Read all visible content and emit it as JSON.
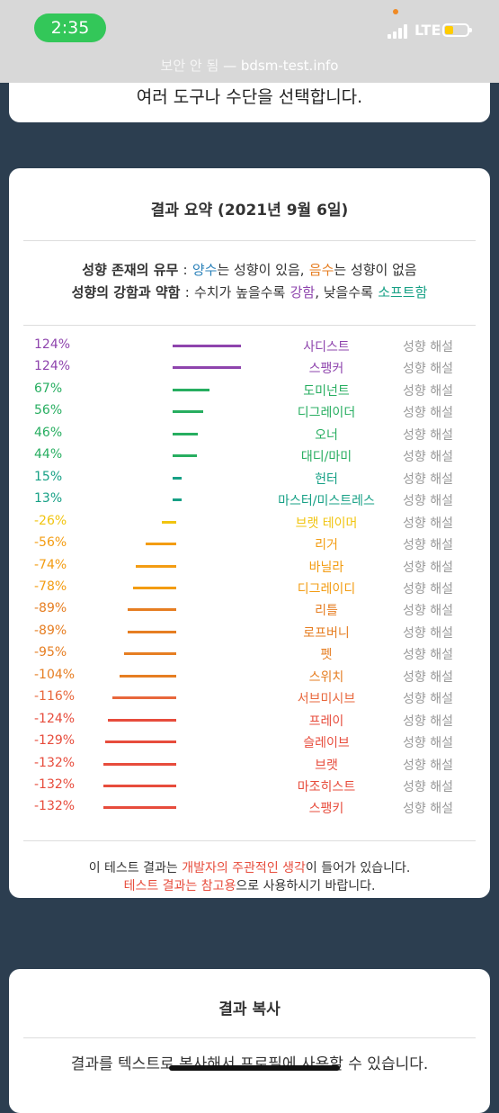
{
  "status": {
    "time": "2:35",
    "network": "LTE"
  },
  "browser": {
    "insecure": "보안 안 됨",
    "separator": "—",
    "domain": "bdsm-test.info"
  },
  "top_card": {
    "text": "여러 도구나 수단을 선택합니다."
  },
  "summary": {
    "title": "결과 요약 (2021년 9월 6일)",
    "legend1": {
      "label": "성향 존재의 유무",
      "colon": ":",
      "pos": "양수",
      "pos_rest": "는 성향이 있음,",
      "neg": "음수",
      "neg_rest": "는 성향이 없음"
    },
    "legend2": {
      "label": "성향의 강함과 약함",
      "colon": ":",
      "start": "수치가 높을수록",
      "strong": "강함",
      "mid": ", 낮을수록",
      "soft": "소프트함"
    },
    "explain_label": "성향 해설",
    "rows": [
      {
        "pct": "124%",
        "name": "사디스트",
        "value": 124,
        "color": "#8e44ad"
      },
      {
        "pct": "124%",
        "name": "스팽커",
        "value": 124,
        "color": "#8e44ad"
      },
      {
        "pct": "67%",
        "name": "도미넌트",
        "value": 67,
        "color": "#27ae60"
      },
      {
        "pct": "56%",
        "name": "디그레이더",
        "value": 56,
        "color": "#27ae60"
      },
      {
        "pct": "46%",
        "name": "오너",
        "value": 46,
        "color": "#27ae60"
      },
      {
        "pct": "44%",
        "name": "대디/마미",
        "value": 44,
        "color": "#27ae60"
      },
      {
        "pct": "15%",
        "name": "헌터",
        "value": 15,
        "color": "#16a085"
      },
      {
        "pct": "13%",
        "name": "마스터/미스트레스",
        "value": 13,
        "color": "#16a085"
      },
      {
        "pct": "-26%",
        "name": "브랫 테이머",
        "value": -26,
        "color": "#f1c40f"
      },
      {
        "pct": "-56%",
        "name": "리거",
        "value": -56,
        "color": "#f39c12"
      },
      {
        "pct": "-74%",
        "name": "바닐라",
        "value": -74,
        "color": "#f39c12"
      },
      {
        "pct": "-78%",
        "name": "디그레이디",
        "value": -78,
        "color": "#f39c12"
      },
      {
        "pct": "-89%",
        "name": "리틀",
        "value": -89,
        "color": "#e67e22"
      },
      {
        "pct": "-89%",
        "name": "로프버니",
        "value": -89,
        "color": "#e67e22"
      },
      {
        "pct": "-95%",
        "name": "펫",
        "value": -95,
        "color": "#e67e22"
      },
      {
        "pct": "-104%",
        "name": "스위치",
        "value": -104,
        "color": "#e67e22"
      },
      {
        "pct": "-116%",
        "name": "서브미시브",
        "value": -116,
        "color": "#e8673c"
      },
      {
        "pct": "-124%",
        "name": "프레이",
        "value": -124,
        "color": "#e74c3c"
      },
      {
        "pct": "-129%",
        "name": "슬레이브",
        "value": -129,
        "color": "#e74c3c"
      },
      {
        "pct": "-132%",
        "name": "브랫",
        "value": -132,
        "color": "#e74c3c"
      },
      {
        "pct": "-132%",
        "name": "마조히스트",
        "value": -132,
        "color": "#e74c3c"
      },
      {
        "pct": "-132%",
        "name": "스팽키",
        "value": -132,
        "color": "#e74c3c"
      }
    ],
    "note1": {
      "a": "이 테스트 결과는",
      "b": "개발자의 주관적인 생각",
      "c": "이 들어가 있습니다."
    },
    "note2": {
      "a": "테스트 결과는 참고용",
      "b": "으로 사용하시기 바랍니다."
    }
  },
  "copy_card": {
    "title": "결과 복사",
    "text": "결과를 텍스트로 복사해서 프로필에 사용할 수 있습니다."
  }
}
